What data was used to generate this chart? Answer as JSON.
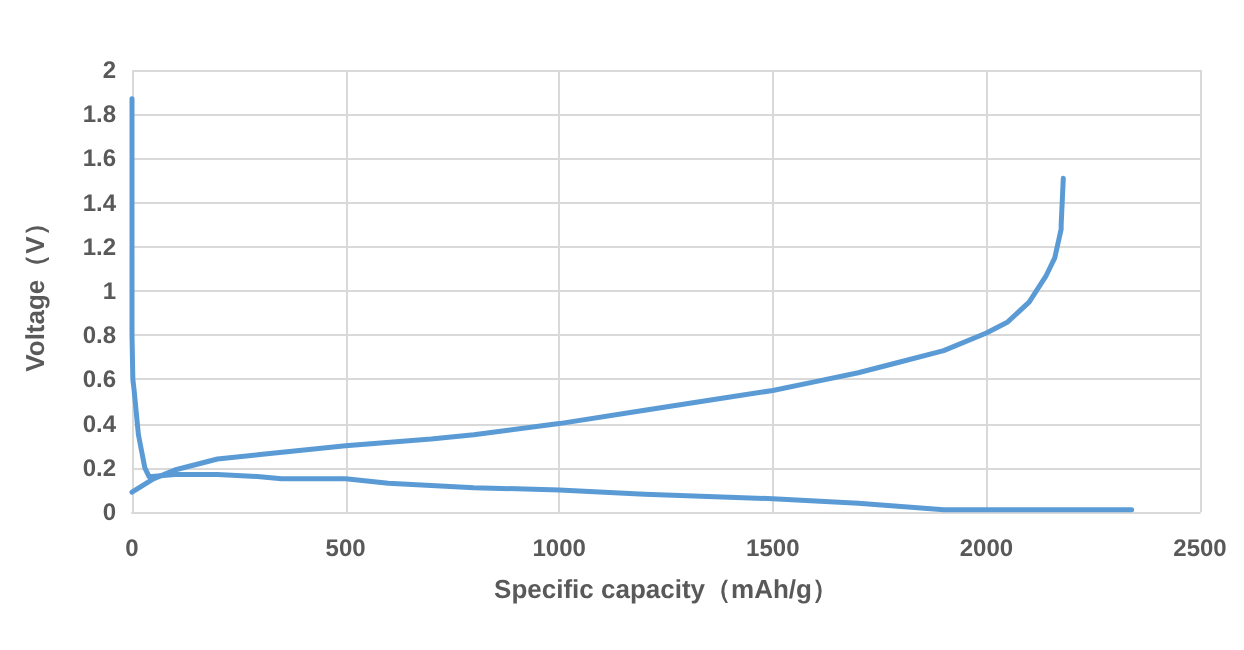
{
  "chart_data": {
    "type": "line",
    "xlabel": "Specific capacity（mAh/g）",
    "ylabel": "Voltage（V）",
    "series": [
      {
        "color": "#5b9bd5",
        "x": [
          0,
          0,
          2,
          5,
          15,
          30,
          40,
          100,
          200,
          300,
          350,
          500,
          600,
          800,
          1000,
          1200,
          1500,
          1700,
          1900,
          2000,
          2340
        ],
        "values": [
          1.87,
          0.8,
          0.6,
          0.55,
          0.35,
          0.2,
          0.16,
          0.17,
          0.17,
          0.16,
          0.15,
          0.15,
          0.13,
          0.11,
          0.1,
          0.08,
          0.06,
          0.04,
          0.01,
          0.01,
          0.01
        ]
      },
      {
        "color": "#5b9bd5",
        "x": [
          0,
          50,
          100,
          200,
          300,
          500,
          700,
          800,
          1000,
          1200,
          1400,
          1500,
          1600,
          1700,
          1800,
          1900,
          2000,
          2050,
          2100,
          2140,
          2160,
          2175,
          2175,
          2180
        ],
        "values": [
          0.09,
          0.15,
          0.19,
          0.24,
          0.26,
          0.3,
          0.33,
          0.35,
          0.4,
          0.46,
          0.52,
          0.55,
          0.59,
          0.63,
          0.68,
          0.73,
          0.81,
          0.86,
          0.95,
          1.07,
          1.15,
          1.28,
          1.3,
          1.51
        ]
      }
    ],
    "xlim": [
      0,
      2500
    ],
    "xticks": [
      0,
      500,
      1000,
      1500,
      2000,
      2500
    ],
    "ylim": [
      0,
      2
    ],
    "yticks": [
      0,
      0.2,
      0.4,
      0.6,
      0.8,
      1,
      1.2,
      1.4,
      1.6,
      1.8,
      2
    ],
    "grid": true,
    "marker": "none",
    "line_style": "solid"
  }
}
